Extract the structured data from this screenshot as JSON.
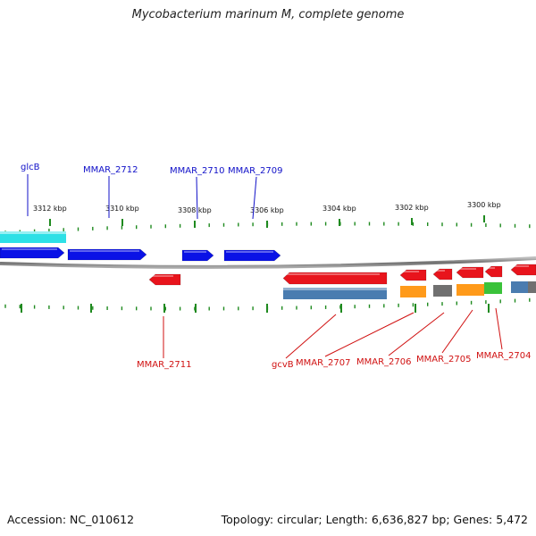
{
  "title": "Mycobacterium marinum M, complete genome",
  "footer": {
    "accession": "Accession: NC_010612",
    "summary": "Topology: circular; Length: 6,636,827 bp; Genes: 5,472"
  },
  "colors": {
    "forward_gene": "#0a12e6",
    "reverse_gene": "#e8141c",
    "forward_cds": "#1a1ad8",
    "highlight_cyan": "#2de0e6",
    "steel_blue": "#4a7cb0",
    "orange": "#ff9a1a",
    "gray": "#707070",
    "green": "#3ac23a",
    "tick": "#1f8a1f",
    "backbone": "#7a7a7a",
    "label_forward": "#1010c8",
    "label_reverse": "#d01010"
  },
  "scale": {
    "unit": "kbp",
    "major_ticks": [
      "3312 kbp",
      "3310 kbp",
      "3308 kbp",
      "3306 kbp",
      "3304 kbp",
      "3302 kbp",
      "3300 kbp"
    ]
  },
  "labels_top": [
    "glcB",
    "MMAR_2712",
    "MMAR_2710",
    "MMAR_2709"
  ],
  "labels_bottom": [
    "MMAR_2711",
    "gcvB",
    "MMAR_2707",
    "MMAR_2706",
    "MMAR_2705",
    "MMAR_2704"
  ]
}
